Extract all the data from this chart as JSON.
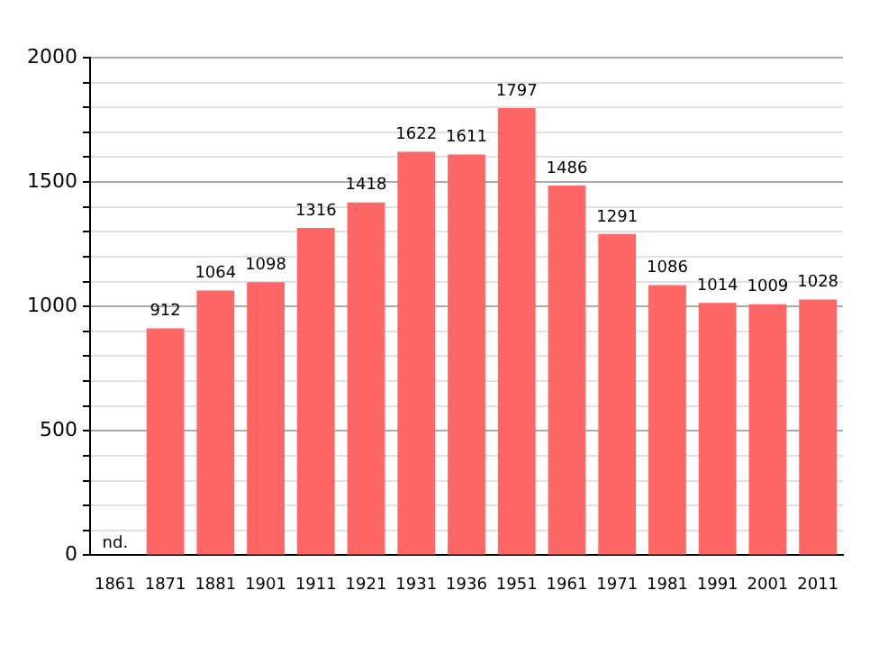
{
  "chart_data": {
    "type": "bar",
    "categories": [
      "1861",
      "1871",
      "1881",
      "1901",
      "1911",
      "1921",
      "1931",
      "1936",
      "1951",
      "1961",
      "1971",
      "1981",
      "1991",
      "2001",
      "2011"
    ],
    "values": [
      null,
      912,
      1064,
      1098,
      1316,
      1418,
      1622,
      1611,
      1797,
      1486,
      1291,
      1086,
      1014,
      1009,
      1028
    ],
    "value_labels": [
      "nd.",
      "912",
      "1064",
      "1098",
      "1316",
      "1418",
      "1622",
      "1611",
      "1797",
      "1486",
      "1291",
      "1086",
      "1014",
      "1009",
      "1028"
    ],
    "color": "#ff6666",
    "ylim": [
      0,
      2000
    ],
    "yticks": [
      0,
      {
        "value": 100,
        "label": null
      },
      {
        "value": 200,
        "label": null
      },
      {
        "value": 300,
        "label": null
      },
      {
        "value": 400,
        "label": null
      },
      500,
      {
        "value": 600,
        "label": null
      },
      {
        "value": 700,
        "label": null
      },
      {
        "value": 800,
        "label": null
      },
      {
        "value": 900,
        "label": null
      },
      1000,
      {
        "value": 1100,
        "label": null
      },
      {
        "value": 1200,
        "label": null
      },
      {
        "value": 1300,
        "label": null
      },
      {
        "value": 1400,
        "label": null
      },
      1500,
      {
        "value": 1600,
        "label": null
      },
      {
        "value": 1700,
        "label": null
      },
      {
        "value": 1800,
        "label": null
      },
      {
        "value": 1900,
        "label": null
      },
      2000
    ],
    "grid": "y"
  }
}
